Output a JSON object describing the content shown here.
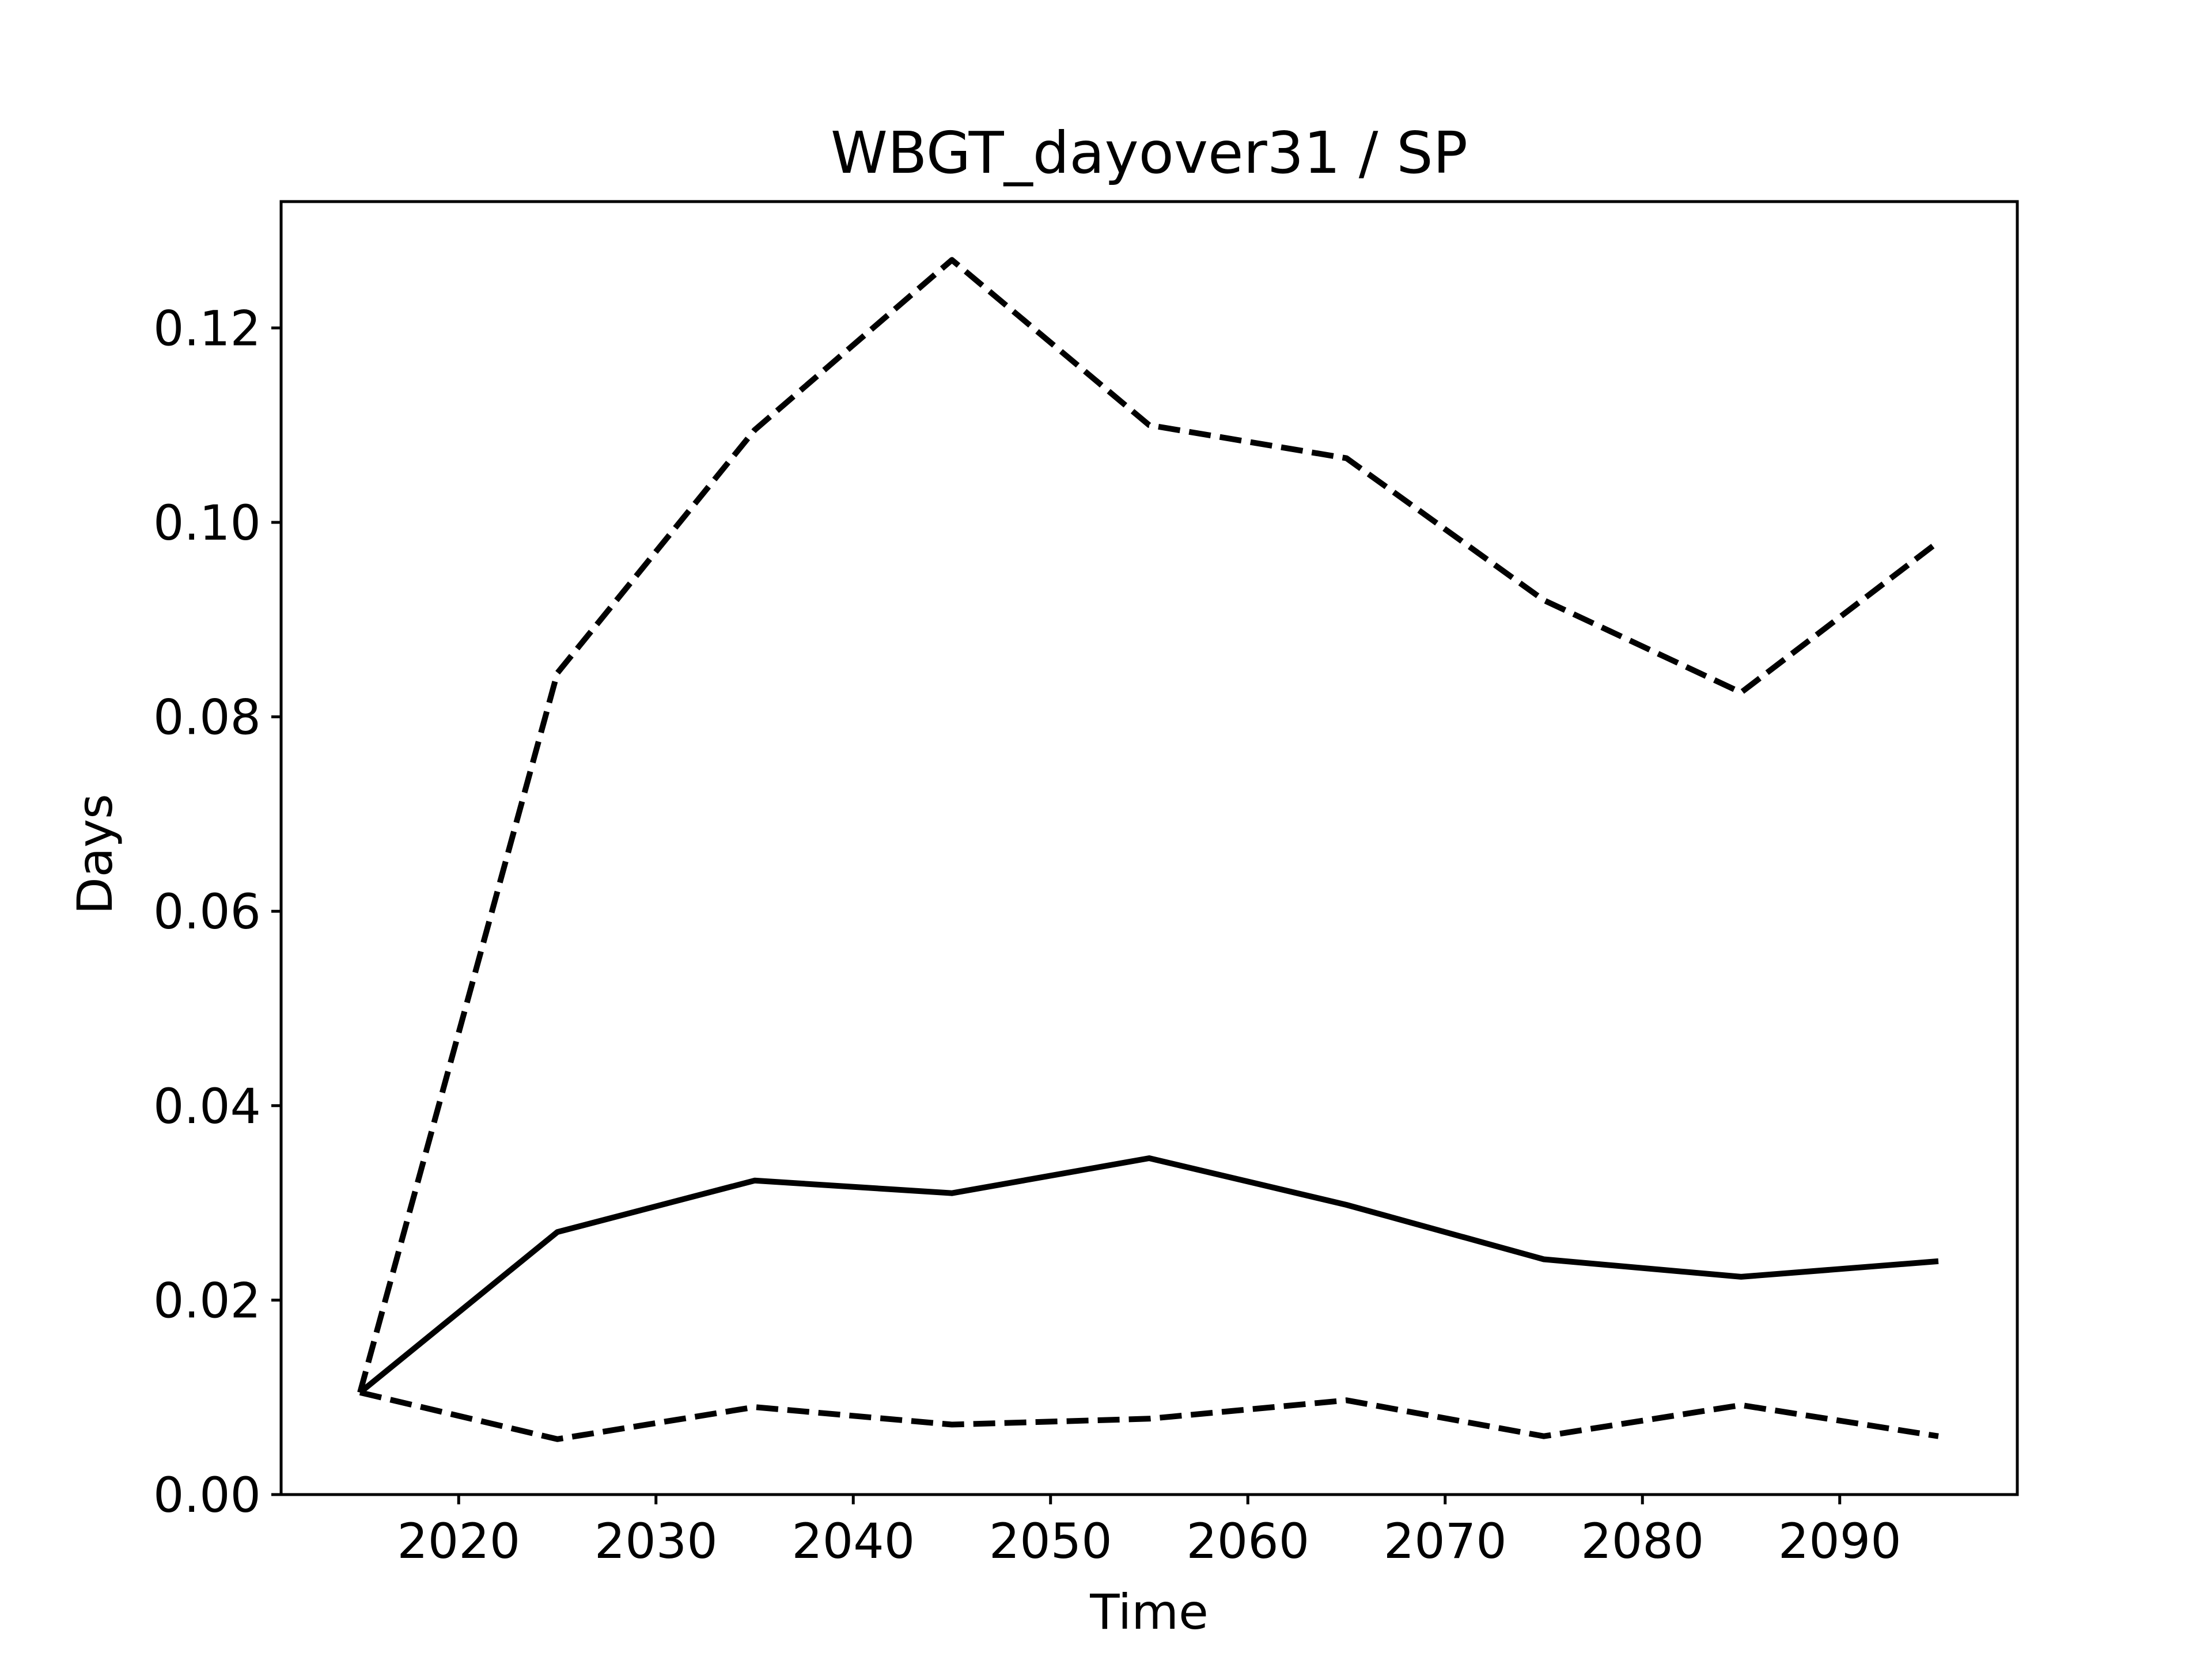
{
  "chart_data": {
    "type": "line",
    "title": "WBGT_dayover31 / SP",
    "xlabel": "Time",
    "ylabel": "Days",
    "xlim": [
      2011,
      2099
    ],
    "ylim": [
      0,
      0.133
    ],
    "x": [
      2015,
      2025,
      2035,
      2045,
      2055,
      2065,
      2075,
      2085,
      2095
    ],
    "x_ticks": [
      2020,
      2030,
      2040,
      2050,
      2060,
      2070,
      2080,
      2090
    ],
    "x_tick_labels": [
      "2020",
      "2030",
      "2040",
      "2050",
      "2060",
      "2070",
      "2080",
      "2090"
    ],
    "y_ticks": [
      0,
      0.02,
      0.04,
      0.06,
      0.08,
      0.1,
      0.12
    ],
    "y_tick_labels": [
      "0.00",
      "0.02",
      "0.04",
      "0.06",
      "0.08",
      "0.10",
      "0.12"
    ],
    "grid": false,
    "legend": "none",
    "series": [
      {
        "style": "solid",
        "color": "#000000",
        "values": [
          0.0105,
          0.027,
          0.0323,
          0.031,
          0.0346,
          0.0298,
          0.0242,
          0.0224,
          0.024
        ]
      },
      {
        "style": "dashed",
        "color": "#000000",
        "values": [
          0.0105,
          0.0845,
          0.1095,
          0.127,
          0.11,
          0.1066,
          0.092,
          0.0825,
          0.098
        ]
      },
      {
        "style": "dashed",
        "color": "#000000",
        "values": [
          0.0105,
          0.0057,
          0.009,
          0.0072,
          0.0078,
          0.0097,
          0.006,
          0.0092,
          0.006
        ]
      }
    ]
  }
}
